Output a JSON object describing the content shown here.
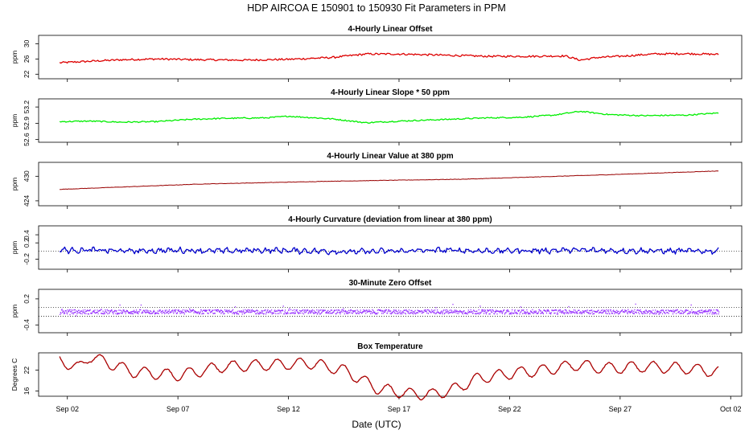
{
  "title": "HDP   AIRCOA E   150901 to 150930   Fit Parameters in PPM",
  "xlabel": "Date (UTC)",
  "x_ticks": [
    "Sep 02",
    "Sep 07",
    "Sep 12",
    "Sep 17",
    "Sep 22",
    "Sep 27",
    "Oct 02"
  ],
  "chart_data": [
    {
      "type": "line",
      "title": "4-Hourly Linear Offset",
      "ylabel": "ppm",
      "yticks": [
        22,
        26,
        30
      ],
      "ylim": [
        20.8,
        32.2
      ],
      "color": "#dd0000",
      "x_range_days": [
        1.65,
        31.45
      ],
      "series": [
        {
          "points": [
            [
              1.65,
              25.0
            ],
            [
              3.0,
              25.4
            ],
            [
              4.5,
              25.8
            ],
            [
              6.0,
              26.0
            ],
            [
              8.0,
              25.8
            ],
            [
              10.0,
              25.7
            ],
            [
              12.0,
              25.9
            ],
            [
              14.0,
              26.4
            ],
            [
              15.5,
              27.3
            ],
            [
              17.0,
              27.3
            ],
            [
              19.0,
              27.0
            ],
            [
              21.0,
              26.7
            ],
            [
              23.0,
              26.7
            ],
            [
              24.5,
              26.8
            ],
            [
              25.2,
              25.7
            ],
            [
              26.0,
              26.4
            ],
            [
              27.0,
              26.7
            ],
            [
              28.5,
              27.3
            ],
            [
              30.0,
              27.4
            ],
            [
              31.45,
              27.2
            ]
          ]
        }
      ]
    },
    {
      "type": "line",
      "title": "4-Hourly Linear Slope * 50 ppm",
      "ylabel": "ppm",
      "yticks": [
        52.6,
        52.9,
        53.2
      ],
      "ylim": [
        52.55,
        53.35
      ],
      "color": "#00ee00",
      "x_range_days": [
        1.65,
        31.45
      ],
      "series": [
        {
          "points": [
            [
              1.65,
              52.93
            ],
            [
              3.0,
              52.94
            ],
            [
              4.5,
              52.92
            ],
            [
              6.0,
              52.93
            ],
            [
              7.5,
              52.97
            ],
            [
              9.0,
              52.99
            ],
            [
              11.0,
              53.0
            ],
            [
              12.0,
              53.03
            ],
            [
              14.0,
              52.98
            ],
            [
              15.5,
              52.91
            ],
            [
              17.0,
              52.94
            ],
            [
              19.0,
              52.97
            ],
            [
              21.0,
              53.0
            ],
            [
              22.5,
              53.01
            ],
            [
              24.0,
              53.05
            ],
            [
              25.2,
              53.12
            ],
            [
              26.5,
              53.06
            ],
            [
              28.0,
              53.04
            ],
            [
              30.0,
              53.05
            ],
            [
              31.45,
              53.09
            ]
          ]
        }
      ]
    },
    {
      "type": "line",
      "title": "4-Hourly Linear Value at 380 ppm",
      "ylabel": "ppm",
      "yticks": [
        424,
        430
      ],
      "ylim": [
        422.8,
        433.4
      ],
      "color": "#990000",
      "x_range_days": [
        1.65,
        31.45
      ],
      "series": [
        {
          "points": [
            [
              1.65,
              426.8
            ],
            [
              8.0,
              428.1
            ],
            [
              14.0,
              428.8
            ],
            [
              20.0,
              429.3
            ],
            [
              26.0,
              430.3
            ],
            [
              31.45,
              431.3
            ]
          ]
        }
      ]
    },
    {
      "type": "line",
      "title": "4-Hourly Curvature (deviation from linear at 380 ppm)",
      "ylabel": "ppm",
      "yticks": [
        -0.2,
        0.2,
        0.4
      ],
      "ylim": [
        -0.45,
        0.62
      ],
      "color": "#0000cc",
      "reference_line": 0.0,
      "x_range_days": [
        1.65,
        31.45
      ],
      "series": [
        {
          "points": [
            [
              1.65,
              0.02
            ],
            [
              3.0,
              0.02
            ],
            [
              5.0,
              0.0
            ],
            [
              7.0,
              0.02
            ],
            [
              9.0,
              0.0
            ],
            [
              11.0,
              0.02
            ],
            [
              13.0,
              0.0
            ],
            [
              15.0,
              -0.02
            ],
            [
              17.0,
              0.0
            ],
            [
              19.0,
              0.02
            ],
            [
              21.0,
              0.0
            ],
            [
              23.0,
              0.01
            ],
            [
              25.0,
              0.02
            ],
            [
              27.0,
              0.01
            ],
            [
              29.0,
              0.0
            ],
            [
              31.45,
              0.0
            ]
          ]
        }
      ]
    },
    {
      "type": "scatter",
      "title": "30-Minute Zero Offset",
      "ylabel": "ppm",
      "yticks": [
        -0.4,
        0.2
      ],
      "ylim": [
        -0.58,
        0.42
      ],
      "color": "#9933ff",
      "reference_lines": [
        0.0,
        -0.2
      ],
      "x_range_days": [
        1.65,
        31.45
      ],
      "series": [
        {
          "points": [
            [
              1.65,
              -0.1
            ],
            [
              5.0,
              -0.1
            ],
            [
              10.0,
              -0.1
            ],
            [
              15.0,
              -0.1
            ],
            [
              20.0,
              -0.1
            ],
            [
              25.0,
              -0.1
            ],
            [
              31.45,
              -0.1
            ]
          ]
        }
      ]
    },
    {
      "type": "line",
      "title": "Box Temperature",
      "ylabel": "Degrees C",
      "yticks": [
        16,
        22
      ],
      "ylim": [
        14.5,
        27.0
      ],
      "color": "#aa0000",
      "x_range_days": [
        1.65,
        31.45
      ],
      "series": [
        {
          "points": [
            [
              1.65,
              25.0
            ],
            [
              2.5,
              22.5
            ],
            [
              3.0,
              26.0
            ],
            [
              5.0,
              21.5
            ],
            [
              7.0,
              20.5
            ],
            [
              9.0,
              23.0
            ],
            [
              11.0,
              23.5
            ],
            [
              13.0,
              24.0
            ],
            [
              14.5,
              22.0
            ],
            [
              16.0,
              16.8
            ],
            [
              17.5,
              15.2
            ],
            [
              18.5,
              15.0
            ],
            [
              19.5,
              16.5
            ],
            [
              20.5,
              19.5
            ],
            [
              22.0,
              21.0
            ],
            [
              23.5,
              22.0
            ],
            [
              25.0,
              23.5
            ],
            [
              26.5,
              22.5
            ],
            [
              28.0,
              23.0
            ],
            [
              30.0,
              22.5
            ],
            [
              31.45,
              21.5
            ]
          ]
        }
      ]
    }
  ]
}
